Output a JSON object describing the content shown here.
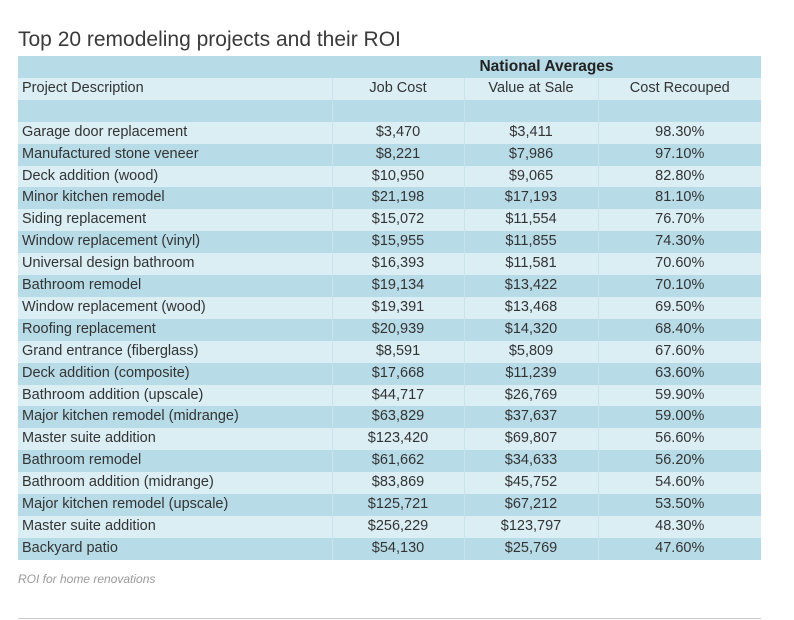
{
  "title": "Top 20 remodeling projects and their ROI",
  "table": {
    "group_header": "National Averages",
    "columns": [
      "Project Description",
      "Job Cost",
      "Value at Sale",
      "Cost Recouped"
    ],
    "rows": [
      [
        "Garage door replacement",
        "$3,470",
        "$3,411",
        "98.30%"
      ],
      [
        "Manufactured stone veneer",
        "$8,221",
        "$7,986",
        "97.10%"
      ],
      [
        "Deck addition (wood)",
        "$10,950",
        "$9,065",
        "82.80%"
      ],
      [
        "Minor kitchen remodel",
        "$21,198",
        "$17,193",
        "81.10%"
      ],
      [
        "Siding replacement",
        "$15,072",
        "$11,554",
        "76.70%"
      ],
      [
        "Window replacement (vinyl)",
        "$15,955",
        "$11,855",
        "74.30%"
      ],
      [
        "Universal design bathroom",
        "$16,393",
        "$11,581",
        "70.60%"
      ],
      [
        "Bathroom remodel",
        "$19,134",
        "$13,422",
        "70.10%"
      ],
      [
        "Window replacement (wood)",
        "$19,391",
        "$13,468",
        "69.50%"
      ],
      [
        "Roofing replacement",
        "$20,939",
        "$14,320",
        "68.40%"
      ],
      [
        "Grand entrance (fiberglass)",
        "$8,591",
        "$5,809",
        "67.60%"
      ],
      [
        "Deck addition (composite)",
        "$17,668",
        "$11,239",
        "63.60%"
      ],
      [
        "Bathroom addition (upscale)",
        "$44,717",
        "$26,769",
        "59.90%"
      ],
      [
        "Major kitchen remodel (midrange)",
        "$63,829",
        "$37,637",
        "59.00%"
      ],
      [
        "Master suite addition",
        "$123,420",
        "$69,807",
        "56.60%"
      ],
      [
        "Bathroom remodel",
        "$61,662",
        "$34,633",
        "56.20%"
      ],
      [
        "Bathroom addition (midrange)",
        "$83,869",
        "$45,752",
        "54.60%"
      ],
      [
        "Major kitchen remodel (upscale)",
        "$125,721",
        "$67,212",
        "53.50%"
      ],
      [
        "Master suite addition",
        "$256,229",
        "$123,797",
        "48.30%"
      ],
      [
        "Backyard patio",
        "$54,130",
        "$25,769",
        "47.60%"
      ]
    ]
  },
  "caption": "ROI for home renovations",
  "colors": {
    "row_dark": "#b8dce7",
    "row_light": "#daeef4"
  }
}
